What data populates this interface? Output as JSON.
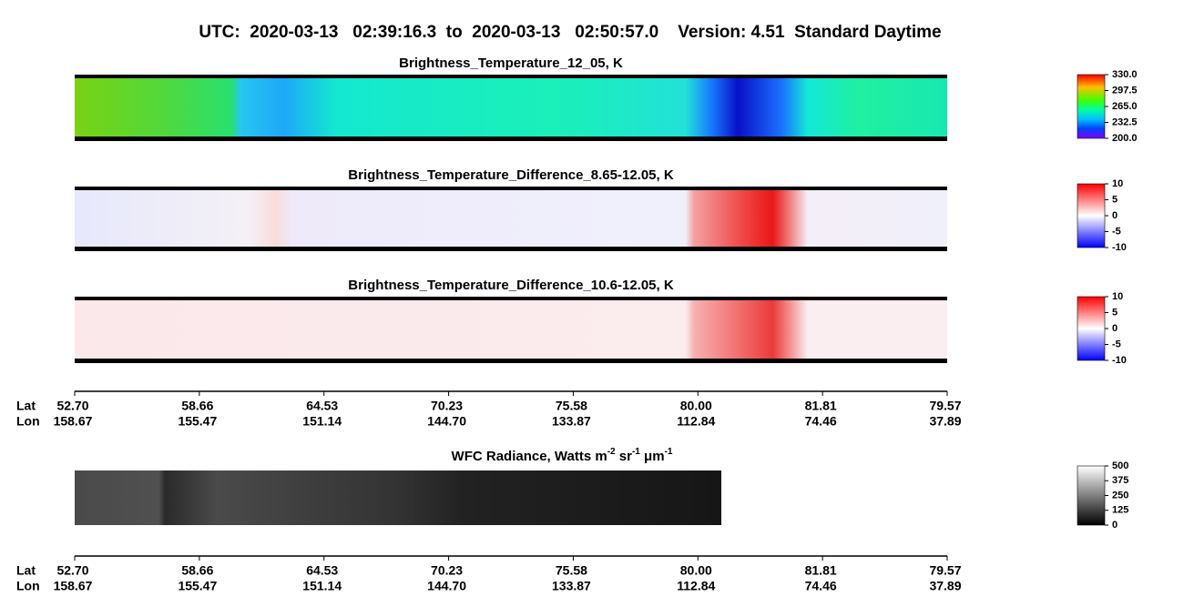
{
  "header": {
    "title": "UTC:  2020-03-13   02:39:16.3  to  2020-03-13   02:50:57.0    Version: 4.51  Standard Daytime"
  },
  "panels": [
    {
      "title": "Brightness_Temperature_12_05, K",
      "colorbar": [
        "330.0",
        "297.5",
        "265.0",
        "232.5",
        "200.0"
      ]
    },
    {
      "title": "Brightness_Temperature_Difference_8.65-12.05, K",
      "colorbar": [
        "10",
        "5",
        "0",
        "-5",
        "-10"
      ]
    },
    {
      "title": "Brightness_Temperature_Difference_10.6-12.05, K",
      "colorbar": [
        "10",
        "5",
        "0",
        "-5",
        "-10"
      ]
    }
  ],
  "axes": [
    {
      "lat_label": "Lat",
      "lon_label": "Lon",
      "lat": [
        "52.70",
        "58.66",
        "64.53",
        "70.23",
        "75.58",
        "80.00",
        "81.81",
        "79.57"
      ],
      "lon": [
        "158.67",
        "155.47",
        "151.14",
        "144.70",
        "133.87",
        "112.84",
        "74.46",
        "37.89"
      ]
    },
    {
      "lat_label": "Lat",
      "lon_label": "Lon",
      "lat": [
        "52.70",
        "58.66",
        "64.53",
        "70.23",
        "75.58",
        "80.00",
        "81.81",
        "79.57"
      ],
      "lon": [
        "158.67",
        "155.47",
        "151.14",
        "144.70",
        "133.87",
        "112.84",
        "74.46",
        "37.89"
      ]
    }
  ],
  "wfc": {
    "title_parts": [
      "WFC Radiance, Watts m",
      "-2",
      " sr",
      "-1",
      " μm",
      "-1"
    ],
    "colorbar": [
      "500",
      "375",
      "250",
      "125",
      "0"
    ]
  }
}
